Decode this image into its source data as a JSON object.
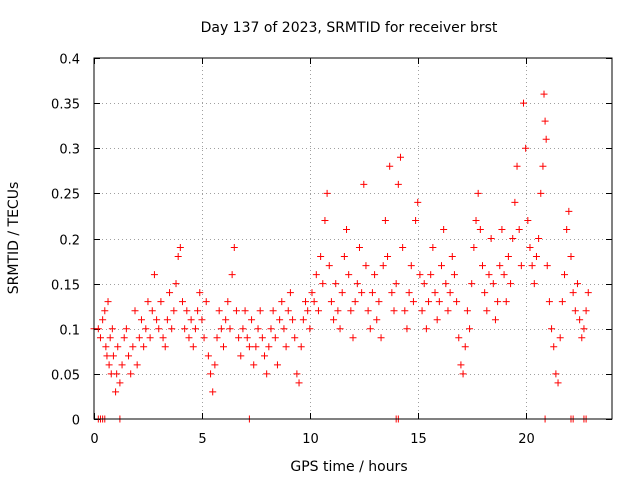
{
  "chart_data": {
    "type": "scatter",
    "title": "Day 137 of 2023, SRMTID for receiver brst",
    "xlabel": "GPS time / hours",
    "ylabel": "SRMTID / TECUs",
    "xlim": [
      0,
      24
    ],
    "ylim": [
      0,
      0.4
    ],
    "x_ticks": [
      0,
      5,
      10,
      15,
      20
    ],
    "x_tick_labels": [
      "0",
      "5",
      "10",
      "15",
      "20"
    ],
    "y_ticks": [
      0,
      0.05,
      0.1,
      0.15,
      0.2,
      0.25,
      0.3,
      0.35,
      0.4
    ],
    "y_tick_labels": [
      "0",
      "0.05",
      "0.1",
      "0.15",
      "0.2",
      "0.25",
      "0.3",
      "0.35",
      "0.4"
    ],
    "grid": true,
    "marker": "plus",
    "color": "#ff0000",
    "series": [
      {
        "name": "SRMTID",
        "points": [
          [
            0.0,
            0.1
          ],
          [
            0.2,
            0.1
          ],
          [
            0.3,
            0.09
          ],
          [
            0.4,
            0.11
          ],
          [
            0.5,
            0.12
          ],
          [
            0.55,
            0.08
          ],
          [
            0.6,
            0.07
          ],
          [
            0.65,
            0.13
          ],
          [
            0.7,
            0.06
          ],
          [
            0.75,
            0.09
          ],
          [
            0.8,
            0.05
          ],
          [
            0.85,
            0.1
          ],
          [
            0.9,
            0.07
          ],
          [
            1.0,
            0.03
          ],
          [
            1.05,
            0.05
          ],
          [
            1.1,
            0.08
          ],
          [
            1.2,
            0.04
          ],
          [
            1.3,
            0.06
          ],
          [
            1.4,
            0.09
          ],
          [
            1.5,
            0.1
          ],
          [
            1.6,
            0.07
          ],
          [
            1.7,
            0.05
          ],
          [
            1.8,
            0.08
          ],
          [
            1.9,
            0.12
          ],
          [
            2.0,
            0.06
          ],
          [
            2.1,
            0.09
          ],
          [
            2.2,
            0.11
          ],
          [
            2.3,
            0.08
          ],
          [
            2.4,
            0.1
          ],
          [
            2.5,
            0.13
          ],
          [
            2.6,
            0.09
          ],
          [
            2.7,
            0.12
          ],
          [
            2.8,
            0.16
          ],
          [
            2.9,
            0.11
          ],
          [
            3.0,
            0.1
          ],
          [
            3.1,
            0.13
          ],
          [
            3.2,
            0.09
          ],
          [
            3.3,
            0.08
          ],
          [
            3.4,
            0.11
          ],
          [
            3.5,
            0.14
          ],
          [
            3.6,
            0.1
          ],
          [
            3.7,
            0.12
          ],
          [
            3.8,
            0.15
          ],
          [
            3.9,
            0.18
          ],
          [
            4.0,
            0.19
          ],
          [
            4.1,
            0.13
          ],
          [
            4.2,
            0.1
          ],
          [
            4.3,
            0.12
          ],
          [
            4.4,
            0.09
          ],
          [
            4.5,
            0.11
          ],
          [
            4.6,
            0.08
          ],
          [
            4.7,
            0.1
          ],
          [
            4.8,
            0.12
          ],
          [
            4.9,
            0.14
          ],
          [
            5.0,
            0.11
          ],
          [
            5.1,
            0.09
          ],
          [
            5.2,
            0.13
          ],
          [
            5.3,
            0.07
          ],
          [
            5.4,
            0.05
          ],
          [
            5.5,
            0.03
          ],
          [
            5.6,
            0.06
          ],
          [
            5.7,
            0.09
          ],
          [
            5.8,
            0.12
          ],
          [
            5.9,
            0.1
          ],
          [
            6.0,
            0.08
          ],
          [
            6.1,
            0.11
          ],
          [
            6.2,
            0.13
          ],
          [
            6.3,
            0.1
          ],
          [
            6.4,
            0.16
          ],
          [
            6.5,
            0.19
          ],
          [
            6.6,
            0.12
          ],
          [
            6.7,
            0.09
          ],
          [
            6.8,
            0.07
          ],
          [
            6.9,
            0.1
          ],
          [
            7.0,
            0.12
          ],
          [
            7.1,
            0.09
          ],
          [
            7.2,
            0.08
          ],
          [
            7.3,
            0.11
          ],
          [
            7.4,
            0.06
          ],
          [
            7.5,
            0.08
          ],
          [
            7.6,
            0.1
          ],
          [
            7.7,
            0.12
          ],
          [
            7.8,
            0.09
          ],
          [
            7.9,
            0.07
          ],
          [
            8.0,
            0.05
          ],
          [
            8.1,
            0.08
          ],
          [
            8.2,
            0.1
          ],
          [
            8.3,
            0.12
          ],
          [
            8.4,
            0.09
          ],
          [
            8.5,
            0.06
          ],
          [
            8.6,
            0.11
          ],
          [
            8.7,
            0.13
          ],
          [
            8.8,
            0.1
          ],
          [
            8.9,
            0.08
          ],
          [
            9.0,
            0.12
          ],
          [
            9.1,
            0.14
          ],
          [
            9.2,
            0.11
          ],
          [
            9.3,
            0.09
          ],
          [
            9.4,
            0.05
          ],
          [
            9.5,
            0.04
          ],
          [
            9.6,
            0.08
          ],
          [
            9.7,
            0.11
          ],
          [
            9.8,
            0.13
          ],
          [
            9.9,
            0.12
          ],
          [
            10.0,
            0.1
          ],
          [
            10.1,
            0.14
          ],
          [
            10.2,
            0.13
          ],
          [
            10.3,
            0.16
          ],
          [
            10.4,
            0.12
          ],
          [
            10.5,
            0.18
          ],
          [
            10.6,
            0.15
          ],
          [
            10.7,
            0.22
          ],
          [
            10.8,
            0.25
          ],
          [
            10.9,
            0.17
          ],
          [
            11.0,
            0.13
          ],
          [
            11.1,
            0.11
          ],
          [
            11.2,
            0.15
          ],
          [
            11.3,
            0.12
          ],
          [
            11.4,
            0.1
          ],
          [
            11.5,
            0.14
          ],
          [
            11.6,
            0.18
          ],
          [
            11.7,
            0.21
          ],
          [
            11.8,
            0.16
          ],
          [
            11.9,
            0.12
          ],
          [
            12.0,
            0.09
          ],
          [
            12.1,
            0.13
          ],
          [
            12.2,
            0.15
          ],
          [
            12.3,
            0.19
          ],
          [
            12.4,
            0.14
          ],
          [
            12.5,
            0.26
          ],
          [
            12.6,
            0.17
          ],
          [
            12.7,
            0.12
          ],
          [
            12.8,
            0.1
          ],
          [
            12.9,
            0.14
          ],
          [
            13.0,
            0.16
          ],
          [
            13.1,
            0.11
          ],
          [
            13.2,
            0.13
          ],
          [
            13.3,
            0.09
          ],
          [
            13.4,
            0.17
          ],
          [
            13.5,
            0.22
          ],
          [
            13.6,
            0.18
          ],
          [
            13.7,
            0.28
          ],
          [
            13.8,
            0.14
          ],
          [
            13.9,
            0.12
          ],
          [
            14.0,
            0.15
          ],
          [
            14.1,
            0.26
          ],
          [
            14.2,
            0.29
          ],
          [
            14.3,
            0.19
          ],
          [
            14.4,
            0.12
          ],
          [
            14.5,
            0.1
          ],
          [
            14.6,
            0.14
          ],
          [
            14.7,
            0.17
          ],
          [
            14.8,
            0.13
          ],
          [
            14.9,
            0.22
          ],
          [
            15.0,
            0.24
          ],
          [
            15.1,
            0.16
          ],
          [
            15.2,
            0.12
          ],
          [
            15.3,
            0.15
          ],
          [
            15.4,
            0.1
          ],
          [
            15.5,
            0.13
          ],
          [
            15.6,
            0.16
          ],
          [
            15.7,
            0.19
          ],
          [
            15.8,
            0.14
          ],
          [
            15.9,
            0.11
          ],
          [
            16.0,
            0.13
          ],
          [
            16.1,
            0.17
          ],
          [
            16.2,
            0.21
          ],
          [
            16.3,
            0.15
          ],
          [
            16.4,
            0.12
          ],
          [
            16.5,
            0.14
          ],
          [
            16.6,
            0.18
          ],
          [
            16.7,
            0.16
          ],
          [
            16.8,
            0.13
          ],
          [
            16.9,
            0.09
          ],
          [
            17.0,
            0.06
          ],
          [
            17.1,
            0.05
          ],
          [
            17.2,
            0.08
          ],
          [
            17.3,
            0.12
          ],
          [
            17.4,
            0.1
          ],
          [
            17.5,
            0.15
          ],
          [
            17.6,
            0.19
          ],
          [
            17.7,
            0.22
          ],
          [
            17.8,
            0.25
          ],
          [
            17.9,
            0.21
          ],
          [
            18.0,
            0.17
          ],
          [
            18.1,
            0.14
          ],
          [
            18.2,
            0.12
          ],
          [
            18.3,
            0.16
          ],
          [
            18.4,
            0.2
          ],
          [
            18.5,
            0.15
          ],
          [
            18.6,
            0.11
          ],
          [
            18.7,
            0.13
          ],
          [
            18.8,
            0.17
          ],
          [
            18.9,
            0.21
          ],
          [
            19.0,
            0.16
          ],
          [
            19.1,
            0.13
          ],
          [
            19.2,
            0.18
          ],
          [
            19.3,
            0.15
          ],
          [
            19.4,
            0.2
          ],
          [
            19.5,
            0.24
          ],
          [
            19.6,
            0.28
          ],
          [
            19.7,
            0.21
          ],
          [
            19.8,
            0.17
          ],
          [
            19.9,
            0.35
          ],
          [
            20.0,
            0.3
          ],
          [
            20.1,
            0.22
          ],
          [
            20.2,
            0.19
          ],
          [
            20.3,
            0.17
          ],
          [
            20.4,
            0.15
          ],
          [
            20.5,
            0.18
          ],
          [
            20.6,
            0.2
          ],
          [
            20.7,
            0.25
          ],
          [
            20.8,
            0.28
          ],
          [
            20.85,
            0.36
          ],
          [
            20.9,
            0.33
          ],
          [
            20.95,
            0.31
          ],
          [
            21.0,
            0.17
          ],
          [
            21.1,
            0.13
          ],
          [
            21.2,
            0.1
          ],
          [
            21.3,
            0.08
          ],
          [
            21.4,
            0.05
          ],
          [
            21.5,
            0.04
          ],
          [
            21.6,
            0.09
          ],
          [
            21.7,
            0.13
          ],
          [
            21.8,
            0.16
          ],
          [
            21.9,
            0.21
          ],
          [
            22.0,
            0.23
          ],
          [
            22.1,
            0.18
          ],
          [
            22.2,
            0.14
          ],
          [
            22.3,
            0.12
          ],
          [
            22.4,
            0.15
          ],
          [
            22.5,
            0.11
          ],
          [
            22.6,
            0.09
          ],
          [
            22.7,
            0.1
          ],
          [
            22.8,
            0.12
          ],
          [
            22.9,
            0.14
          ],
          [
            0.2,
            0.0
          ],
          [
            0.3,
            0.0
          ],
          [
            0.4,
            0.0
          ],
          [
            0.5,
            0.0
          ],
          [
            1.2,
            0.0
          ],
          [
            7.2,
            0.0
          ],
          [
            14.0,
            0.0
          ],
          [
            14.1,
            0.0
          ],
          [
            20.9,
            0.0
          ],
          [
            22.1,
            0.0
          ],
          [
            22.2,
            0.0
          ],
          [
            22.7,
            0.0
          ],
          [
            22.8,
            0.0
          ]
        ]
      }
    ]
  }
}
